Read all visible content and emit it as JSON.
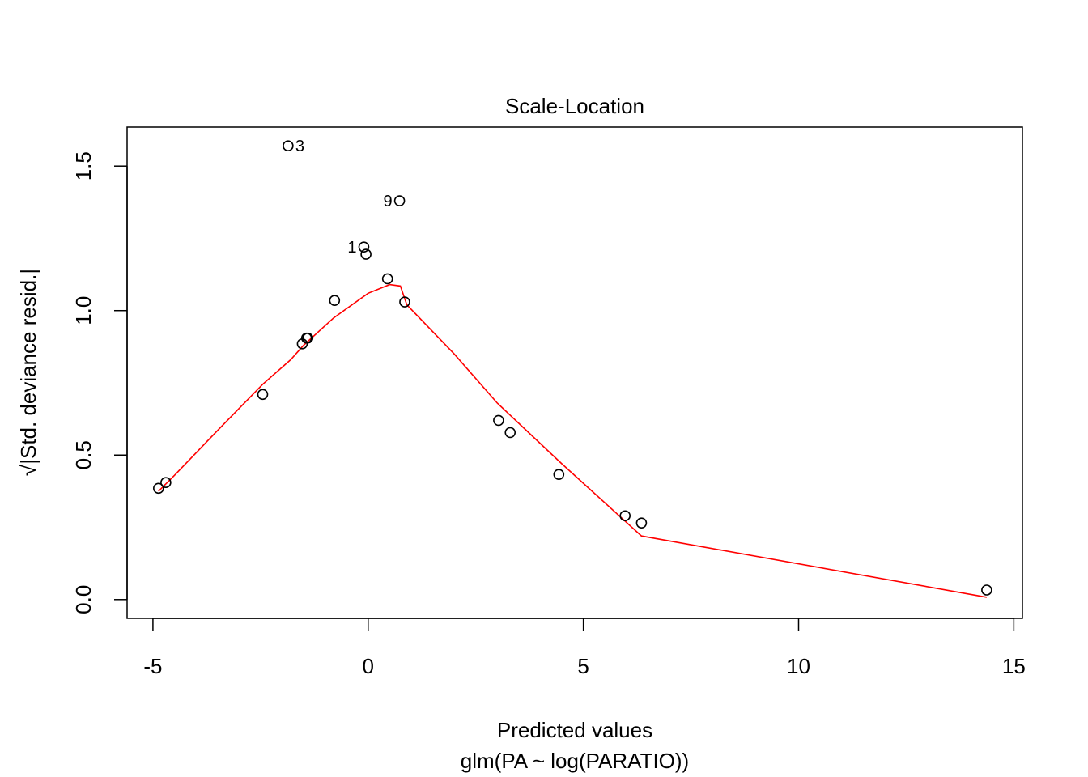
{
  "chart_data": {
    "type": "scatter",
    "title": "Scale-Location",
    "xlabel": "Predicted values",
    "xlabel_sub": "glm(PA ~ log(PARATIO))",
    "ylabel_parts": {
      "radical": "√",
      "text": "|Std. deviance resid.|"
    },
    "xlim": [
      -5.6,
      15.2
    ],
    "ylim": [
      -0.065,
      1.635
    ],
    "x_ticks": [
      -5,
      0,
      5,
      10,
      15
    ],
    "x_tick_labels": [
      "-5",
      "0",
      "5",
      "10",
      "15"
    ],
    "y_ticks": [
      0.0,
      0.5,
      1.0,
      1.5
    ],
    "y_tick_labels": [
      "0.0",
      "0.5",
      "1.0",
      "1.5"
    ],
    "grid": false,
    "points": [
      {
        "x": -4.87,
        "y": 0.385
      },
      {
        "x": -4.7,
        "y": 0.405
      },
      {
        "x": -2.45,
        "y": 0.71
      },
      {
        "x": -1.53,
        "y": 0.885
      },
      {
        "x": -1.43,
        "y": 0.905
      },
      {
        "x": -1.4,
        "y": 0.905
      },
      {
        "x": -0.78,
        "y": 1.035
      },
      {
        "x": -1.86,
        "y": 1.57,
        "label": "3"
      },
      {
        "x": 0.73,
        "y": 1.38,
        "label": "9"
      },
      {
        "x": -0.1,
        "y": 1.22,
        "label": "1"
      },
      {
        "x": -0.05,
        "y": 1.195
      },
      {
        "x": 0.45,
        "y": 1.11
      },
      {
        "x": 0.85,
        "y": 1.03
      },
      {
        "x": 3.03,
        "y": 0.62
      },
      {
        "x": 3.3,
        "y": 0.578
      },
      {
        "x": 4.43,
        "y": 0.433
      },
      {
        "x": 5.97,
        "y": 0.29
      },
      {
        "x": 6.35,
        "y": 0.265
      },
      {
        "x": 14.37,
        "y": 0.033
      }
    ],
    "smooth_line": {
      "color": "#ff0000",
      "points": [
        [
          -4.87,
          0.375
        ],
        [
          -4.5,
          0.43
        ],
        [
          -3.5,
          0.585
        ],
        [
          -2.45,
          0.745
        ],
        [
          -1.8,
          0.83
        ],
        [
          -1.5,
          0.88
        ],
        [
          -0.8,
          0.975
        ],
        [
          0.0,
          1.06
        ],
        [
          0.5,
          1.09
        ],
        [
          0.75,
          1.085
        ],
        [
          0.9,
          1.02
        ],
        [
          2.0,
          0.85
        ],
        [
          3.0,
          0.68
        ],
        [
          4.5,
          0.47
        ],
        [
          6.35,
          0.22
        ],
        [
          14.37,
          0.008
        ]
      ]
    }
  }
}
